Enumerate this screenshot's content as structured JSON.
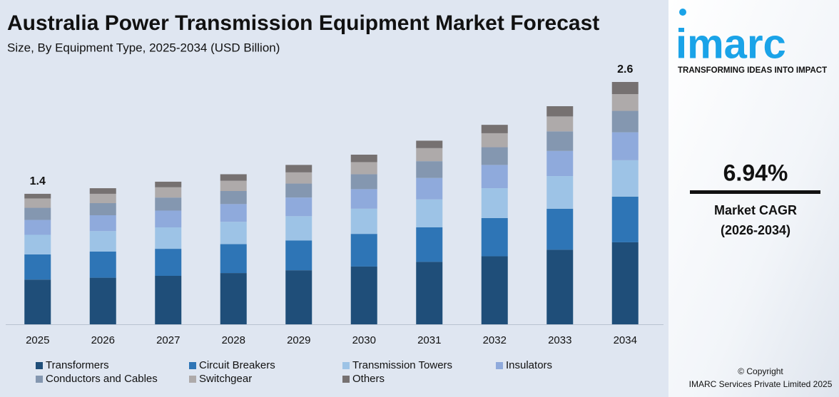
{
  "chart_data": {
    "type": "stacked-bar",
    "title": "Australia Power Transmission Equipment Market Forecast",
    "subtitle": "Size, By Equipment Type, 2025-2034 (USD Billion)",
    "categories": [
      "2025",
      "2026",
      "2027",
      "2028",
      "2029",
      "2030",
      "2031",
      "2032",
      "2033",
      "2034"
    ],
    "series": [
      {
        "name": "Transformers",
        "color": "#1f4e79",
        "values": [
          0.48,
          0.5,
          0.52,
          0.55,
          0.58,
          0.62,
          0.67,
          0.73,
          0.8,
          0.88
        ]
      },
      {
        "name": "Circuit Breakers",
        "color": "#2e75b6",
        "values": [
          0.27,
          0.28,
          0.29,
          0.31,
          0.32,
          0.35,
          0.37,
          0.41,
          0.44,
          0.49
        ]
      },
      {
        "name": "Transmission Towers",
        "color": "#9dc3e6",
        "values": [
          0.21,
          0.22,
          0.23,
          0.24,
          0.26,
          0.27,
          0.3,
          0.32,
          0.35,
          0.39
        ]
      },
      {
        "name": "Insulators",
        "color": "#8faadc",
        "values": [
          0.16,
          0.17,
          0.18,
          0.19,
          0.2,
          0.21,
          0.23,
          0.25,
          0.27,
          0.3
        ]
      },
      {
        "name": "Conductors and Cables",
        "color": "#8497b0",
        "values": [
          0.13,
          0.13,
          0.14,
          0.14,
          0.15,
          0.16,
          0.18,
          0.19,
          0.21,
          0.23
        ]
      },
      {
        "name": "Switchgear",
        "color": "#aeaaaa",
        "values": [
          0.1,
          0.1,
          0.11,
          0.11,
          0.12,
          0.13,
          0.14,
          0.15,
          0.16,
          0.18
        ]
      },
      {
        "name": "Others",
        "color": "#767171",
        "values": [
          0.05,
          0.06,
          0.06,
          0.07,
          0.08,
          0.08,
          0.08,
          0.09,
          0.11,
          0.13
        ]
      }
    ],
    "totals": [
      1.4,
      null,
      null,
      null,
      null,
      null,
      null,
      null,
      null,
      2.6
    ]
  },
  "sidebar": {
    "logo": "imarc",
    "tagline": "TRANSFORMING IDEAS INTO IMPACT",
    "cagr": "6.94%",
    "cagr_label": "Market CAGR",
    "cagr_period": "(2026-2034)",
    "copyright": "© Copyright",
    "company": "IMARC Services Private Limited 2025"
  }
}
